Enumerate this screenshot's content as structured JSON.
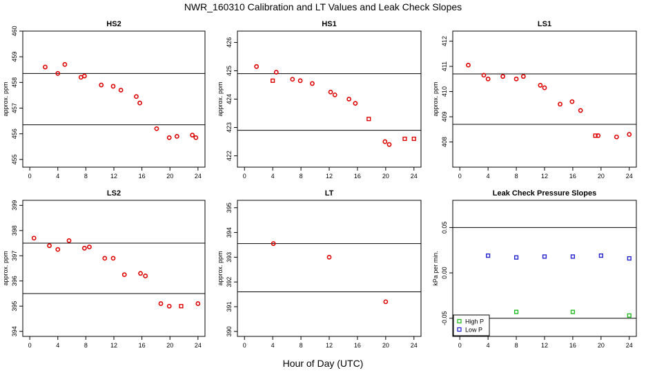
{
  "title": "NWR_160310  Calibration and LT Values and Leak Check Slopes",
  "xlabel": "Hour of Day (UTC)",
  "chart_data": [
    {
      "type": "scatter",
      "title": "HS2",
      "ylabel": "approx. ppm",
      "xlim": [
        -1,
        25
      ],
      "ylim": [
        454.7,
        460.0
      ],
      "xticks": [
        0,
        4,
        8,
        12,
        16,
        20,
        24
      ],
      "yticks": [
        455,
        456,
        457,
        458,
        459,
        460
      ],
      "hlines": [
        458.35,
        456.35
      ],
      "series": [
        {
          "marker": "circle",
          "color": "#dd0000",
          "points": [
            [
              2.2,
              458.6
            ],
            [
              4.0,
              458.35
            ],
            [
              5.0,
              458.7
            ],
            [
              7.3,
              458.2
            ],
            [
              7.8,
              458.25
            ],
            [
              10.2,
              457.9
            ],
            [
              11.9,
              457.85
            ],
            [
              13.0,
              457.7
            ],
            [
              15.2,
              457.45
            ],
            [
              15.7,
              457.2
            ],
            [
              18.1,
              456.2
            ],
            [
              19.9,
              455.85
            ],
            [
              21.0,
              455.9
            ],
            [
              23.2,
              455.95
            ],
            [
              23.7,
              455.85
            ]
          ]
        }
      ]
    },
    {
      "type": "scatter",
      "title": "HS1",
      "ylabel": "approx. ppm",
      "xlim": [
        -1,
        25
      ],
      "ylim": [
        421.6,
        426.4
      ],
      "xticks": [
        0,
        4,
        8,
        12,
        16,
        20,
        24
      ],
      "yticks": [
        422,
        423,
        424,
        425,
        426
      ],
      "hlines": [
        424.9,
        422.9
      ],
      "series": [
        {
          "marker": "circle",
          "color": "#dd0000",
          "points": [
            [
              1.7,
              425.15
            ],
            [
              4.5,
              424.95
            ],
            [
              6.8,
              424.7
            ],
            [
              7.9,
              424.65
            ],
            [
              9.6,
              424.55
            ],
            [
              12.2,
              424.25
            ],
            [
              12.8,
              424.15
            ],
            [
              14.8,
              424.0
            ],
            [
              15.7,
              423.85
            ],
            [
              19.9,
              422.5
            ],
            [
              20.5,
              422.4
            ]
          ]
        },
        {
          "marker": "square",
          "color": "#dd0000",
          "points": [
            [
              4.0,
              424.65
            ],
            [
              17.6,
              423.3
            ],
            [
              22.7,
              422.6
            ],
            [
              24.0,
              422.6
            ]
          ]
        }
      ]
    },
    {
      "type": "scatter",
      "title": "LS1",
      "ylabel": "approx. ppm",
      "xlim": [
        -1,
        25
      ],
      "ylim": [
        407.0,
        412.4
      ],
      "xticks": [
        0,
        4,
        8,
        12,
        16,
        20,
        24
      ],
      "yticks": [
        408,
        409,
        410,
        411,
        412
      ],
      "hlines": [
        410.7,
        408.7
      ],
      "series": [
        {
          "marker": "circle",
          "color": "#dd0000",
          "points": [
            [
              1.2,
              411.05
            ],
            [
              3.4,
              410.65
            ],
            [
              4.0,
              410.5
            ],
            [
              6.1,
              410.6
            ],
            [
              8.0,
              410.5
            ],
            [
              9.0,
              410.6
            ],
            [
              11.4,
              410.25
            ],
            [
              12.0,
              410.15
            ],
            [
              14.2,
              409.5
            ],
            [
              15.9,
              409.6
            ],
            [
              17.1,
              409.25
            ],
            [
              19.6,
              408.25
            ],
            [
              22.2,
              408.2
            ],
            [
              24.0,
              408.3
            ]
          ]
        },
        {
          "marker": "square",
          "color": "#dd0000",
          "points": [
            [
              19.2,
              408.25
            ]
          ]
        }
      ]
    },
    {
      "type": "scatter",
      "title": "LS2",
      "ylabel": "approx. ppm",
      "xlim": [
        -1,
        25
      ],
      "ylim": [
        393.8,
        399.2
      ],
      "xticks": [
        0,
        4,
        8,
        12,
        16,
        20,
        24
      ],
      "yticks": [
        394,
        395,
        396,
        397,
        398,
        399
      ],
      "hlines": [
        397.5,
        395.5
      ],
      "series": [
        {
          "marker": "circle",
          "color": "#dd0000",
          "points": [
            [
              0.6,
              397.7
            ],
            [
              2.8,
              397.4
            ],
            [
              4.0,
              397.25
            ],
            [
              5.6,
              397.6
            ],
            [
              7.8,
              397.3
            ],
            [
              8.5,
              397.35
            ],
            [
              10.7,
              396.9
            ],
            [
              11.9,
              396.9
            ],
            [
              13.5,
              396.25
            ],
            [
              15.8,
              396.3
            ],
            [
              16.5,
              396.2
            ],
            [
              18.7,
              395.1
            ],
            [
              19.9,
              395.0
            ],
            [
              24.0,
              395.1
            ]
          ]
        },
        {
          "marker": "square",
          "color": "#dd0000",
          "points": [
            [
              21.6,
              395.0
            ]
          ]
        }
      ]
    },
    {
      "type": "scatter",
      "title": "LT",
      "ylabel": "approx. ppm",
      "xlim": [
        -1,
        25
      ],
      "ylim": [
        389.8,
        395.3
      ],
      "xticks": [
        0,
        4,
        8,
        12,
        16,
        20,
        24
      ],
      "yticks": [
        390,
        391,
        392,
        393,
        394,
        395
      ],
      "hlines": [
        393.55,
        391.6
      ],
      "series": [
        {
          "marker": "circle",
          "color": "#dd0000",
          "points": [
            [
              4.1,
              393.55
            ],
            [
              12.0,
              393.0
            ],
            [
              20.0,
              391.2
            ]
          ]
        }
      ]
    },
    {
      "type": "scatter",
      "title": "Leak Check Pressure Slopes",
      "ylabel": "kPa per min.",
      "xlim": [
        -1,
        25
      ],
      "ylim": [
        -0.07,
        0.08
      ],
      "xticks": [
        0,
        4,
        8,
        12,
        16,
        20,
        24
      ],
      "yticks": [
        -0.05,
        0.0,
        0.05
      ],
      "ytick_labels": [
        "-0.05",
        "0.00",
        "0.05"
      ],
      "hlines": [
        0.05,
        -0.05
      ],
      "legend": {
        "position": "bottom-left"
      },
      "series": [
        {
          "name": "High P",
          "marker": "square",
          "color": "#22bb22",
          "points": [
            [
              8.0,
              -0.043
            ],
            [
              16.0,
              -0.043
            ],
            [
              24.0,
              -0.047
            ]
          ]
        },
        {
          "name": "Low P",
          "marker": "square",
          "color": "#2222cc",
          "points": [
            [
              4.0,
              0.019
            ],
            [
              8.0,
              0.017
            ],
            [
              12.0,
              0.018
            ],
            [
              16.0,
              0.018
            ],
            [
              20.0,
              0.019
            ],
            [
              24.0,
              0.016
            ]
          ]
        }
      ]
    }
  ]
}
